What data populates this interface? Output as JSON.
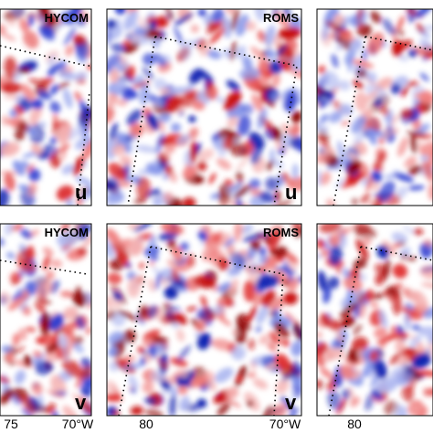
{
  "panels": [
    {
      "model": "HYCOM",
      "variable": "u"
    },
    {
      "model": "ROMS",
      "variable": "u"
    },
    {
      "model": "HYCOM",
      "variable": "v"
    },
    {
      "model": "ROMS",
      "variable": "v"
    }
  ],
  "x_axis_labels": [
    "75",
    "70°W",
    "80",
    "70°W",
    "80"
  ]
}
